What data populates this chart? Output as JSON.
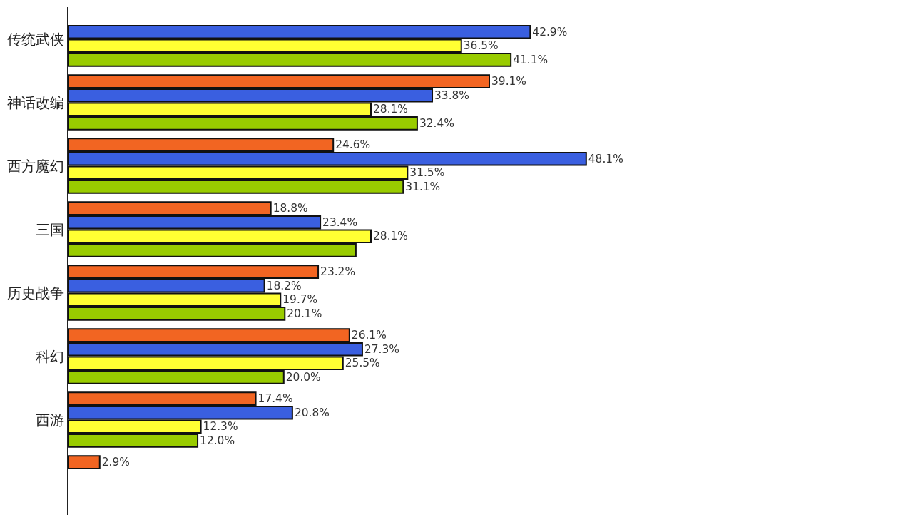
{
  "chart_data": {
    "type": "bar",
    "orientation": "horizontal",
    "categories": [
      "传统武侠",
      "神话改编",
      "西方魔幻",
      "三国",
      "历史战争",
      "科幻",
      "西游",
      null
    ],
    "tick_labels": "y",
    "series": [
      {
        "color": "#f26522",
        "values": [
          null,
          39.1,
          24.6,
          18.8,
          23.2,
          26.1,
          17.4,
          2.9
        ],
        "value_labels": [
          null,
          "39.1%",
          "24.6%",
          "18.8%",
          "23.2%",
          "26.1%",
          "17.4%",
          "2.9%"
        ]
      },
      {
        "color": "#3a5fe0",
        "values": [
          42.9,
          33.8,
          48.1,
          23.4,
          18.2,
          27.3,
          20.8,
          null
        ],
        "value_labels": [
          "42.9%",
          "33.8%",
          "48.1%",
          "23.4%",
          "18.2%",
          "27.3%",
          "20.8%",
          null
        ]
      },
      {
        "color": "#ffff33",
        "values": [
          36.5,
          28.1,
          31.5,
          28.1,
          19.7,
          25.5,
          12.3,
          null
        ],
        "value_labels": [
          "36.5%",
          "28.1%",
          "31.5%",
          "28.1%",
          "19.7%",
          "25.5%",
          "12.3%",
          null
        ]
      },
      {
        "color": "#99cc00",
        "values": [
          41.1,
          32.4,
          31.1,
          26.7,
          20.1,
          20.0,
          12.0,
          null
        ],
        "value_labels": [
          "41.1%",
          "32.4%",
          "31.1%",
          null,
          "20.1%",
          "20.0%",
          "12.0%",
          null
        ]
      }
    ]
  }
}
